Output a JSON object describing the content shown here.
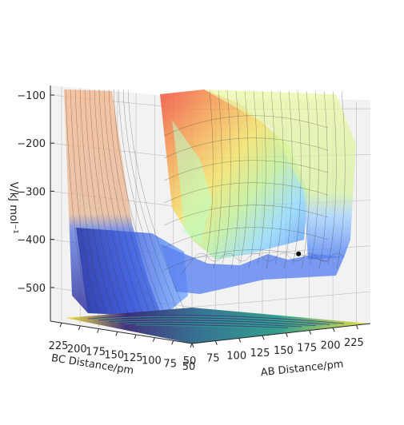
{
  "chart_data": {
    "type": "surface",
    "zlabel": "V/kJ mol⁻¹",
    "ylabel": "AB Distance/pm",
    "xlabel": "BC Distance/pm",
    "z_ticks": [
      -100,
      -200,
      -300,
      -400,
      -500
    ],
    "ab_ticks": [
      50,
      75,
      100,
      125,
      150,
      175,
      200,
      225
    ],
    "bc_ticks": [
      225,
      200,
      175,
      150,
      125,
      100,
      75,
      50
    ],
    "z_tick_labels": [
      "−100",
      "−200",
      "−300",
      "−400",
      "−500"
    ],
    "zlim": [
      -570,
      -80
    ],
    "ab_range": [
      50,
      240
    ],
    "bc_range": [
      50,
      240
    ],
    "colormap_surface": "jet",
    "colormap_contour": "viridis",
    "grid": true,
    "marker": {
      "ab": 155,
      "bc": 65,
      "z": -430
    }
  }
}
